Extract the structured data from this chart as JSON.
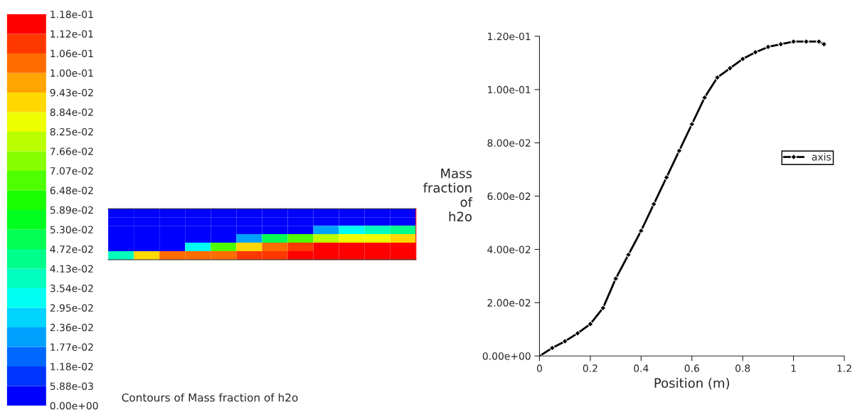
{
  "chart_data": [
    {
      "type": "heatmap",
      "title": "Contours of Mass fraction of h2o",
      "categories": [
        null,
        null,
        null,
        null,
        null,
        null,
        null,
        null,
        null,
        null,
        null,
        null
      ],
      "y_categories": [
        null,
        null,
        null,
        null,
        null,
        null
      ],
      "cells": [
        [
          0,
          0,
          0,
          0,
          0,
          0,
          0,
          0,
          0,
          0,
          0,
          0
        ],
        [
          0,
          0,
          0,
          0,
          0,
          0,
          0,
          0,
          0,
          0,
          0,
          0.005
        ],
        [
          0,
          0,
          0,
          0,
          0,
          0,
          0,
          0.005,
          0.02,
          0.03,
          0.04,
          0.045
        ],
        [
          0,
          0,
          0,
          0,
          0,
          0.02,
          0.05,
          0.07,
          0.08,
          0.085,
          0.088,
          0.09
        ],
        [
          0,
          0,
          0,
          0.03,
          0.07,
          0.09,
          0.1,
          0.108,
          0.112,
          0.114,
          0.116,
          0.117
        ],
        [
          0.04,
          0.09,
          0.1,
          0.105,
          0.105,
          0.108,
          0.11,
          0.113,
          0.116,
          0.118,
          0.118,
          0.118
        ]
      ],
      "clim": [
        0,
        0.118
      ],
      "cticks": [
        {
          "value": 0,
          "label": "0.00e+00"
        },
        {
          "value": 0.00588,
          "label": "5.88e-03"
        },
        {
          "value": 0.0118,
          "label": "1.18e-02"
        },
        {
          "value": 0.0177,
          "label": "1.77e-02"
        },
        {
          "value": 0.0236,
          "label": "2.36e-02"
        },
        {
          "value": 0.0295,
          "label": "2.95e-02"
        },
        {
          "value": 0.0354,
          "label": "3.54e-02"
        },
        {
          "value": 0.0413,
          "label": "4.13e-02"
        },
        {
          "value": 0.0472,
          "label": "4.72e-02"
        },
        {
          "value": 0.053,
          "label": "5.30e-02"
        },
        {
          "value": 0.0589,
          "label": "5.89e-02"
        },
        {
          "value": 0.0648,
          "label": "6.48e-02"
        },
        {
          "value": 0.0707,
          "label": "7.07e-02"
        },
        {
          "value": 0.0766,
          "label": "7.66e-02"
        },
        {
          "value": 0.0825,
          "label": "8.25e-02"
        },
        {
          "value": 0.0884,
          "label": "8.84e-02"
        },
        {
          "value": 0.0943,
          "label": "9.43e-02"
        },
        {
          "value": 0.1,
          "label": "1.00e-01"
        },
        {
          "value": 0.106,
          "label": "1.06e-01"
        },
        {
          "value": 0.112,
          "label": "1.12e-01"
        },
        {
          "value": 0.118,
          "label": "1.18e-01"
        }
      ]
    },
    {
      "type": "line",
      "xlabel": "Position (m)",
      "ylabel": "Mass fraction of h2o",
      "x": [
        0,
        0.05,
        0.1,
        0.15,
        0.2,
        0.25,
        0.3,
        0.35,
        0.4,
        0.45,
        0.5,
        0.55,
        0.6,
        0.65,
        0.7,
        0.75,
        0.8,
        0.85,
        0.9,
        0.95,
        1.0,
        1.05,
        1.1,
        1.12
      ],
      "series": [
        {
          "name": "axis",
          "color": "#000000",
          "values": [
            0,
            0.003,
            0.0055,
            0.0085,
            0.012,
            0.018,
            0.029,
            0.038,
            0.047,
            0.057,
            0.067,
            0.077,
            0.087,
            0.097,
            0.1045,
            0.108,
            0.1115,
            0.114,
            0.116,
            0.117,
            0.118,
            0.118,
            0.118,
            0.117
          ]
        }
      ],
      "xlim": [
        0,
        1.2
      ],
      "xticks": [
        0,
        0.2,
        0.4,
        0.6,
        0.8,
        1,
        1.2
      ],
      "ylim": [
        0,
        0.12
      ],
      "yticks": [
        {
          "value": 0,
          "label": "0.00e+00"
        },
        {
          "value": 0.02,
          "label": "2.00e-02"
        },
        {
          "value": 0.04,
          "label": "4.00e-02"
        },
        {
          "value": 0.06,
          "label": "6.00e-02"
        },
        {
          "value": 0.08,
          "label": "8.00e-02"
        },
        {
          "value": 0.1,
          "label": "1.00e-01"
        },
        {
          "value": 0.12,
          "label": "1.20e-01"
        }
      ],
      "marker": "diamond",
      "line_style": "solid",
      "legend": "right",
      "grid": false
    }
  ]
}
